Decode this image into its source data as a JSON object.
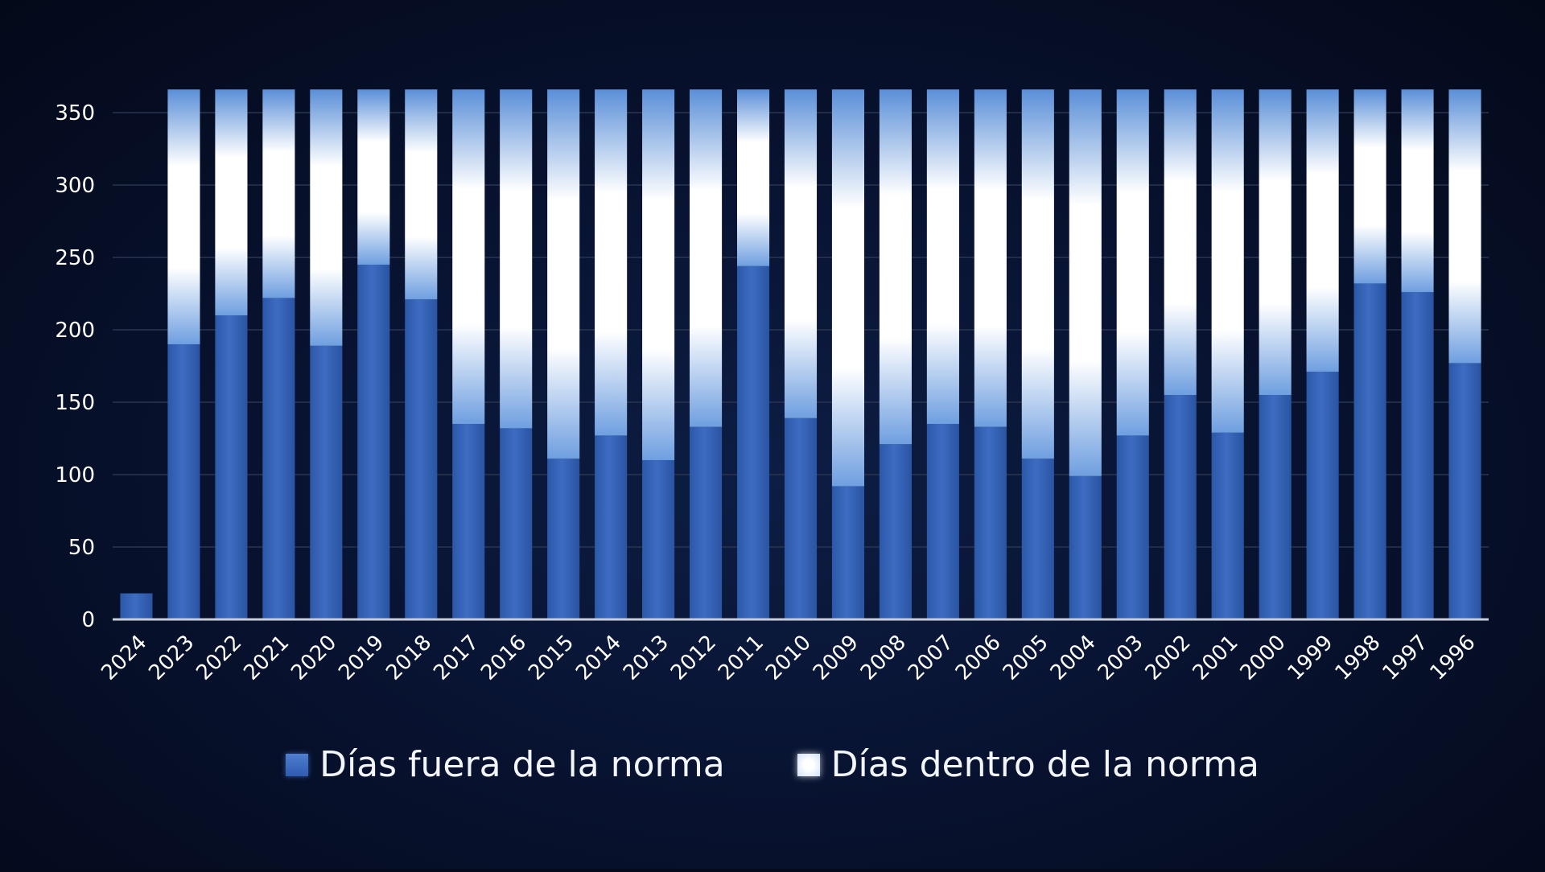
{
  "colors": {
    "fuera": "#3a66b8",
    "dentro": "#ffffff",
    "background": "#081331"
  },
  "chart_data": {
    "type": "bar",
    "stacked": true,
    "categories": [
      "2024",
      "2023",
      "2022",
      "2021",
      "2020",
      "2019",
      "2018",
      "2017",
      "2016",
      "2015",
      "2014",
      "2013",
      "2012",
      "2011",
      "2010",
      "2009",
      "2008",
      "2007",
      "2006",
      "2005",
      "2004",
      "2003",
      "2002",
      "2001",
      "2000",
      "1999",
      "1998",
      "1997",
      "1996"
    ],
    "series": [
      {
        "name": "Días fuera de la norma",
        "values": [
          18,
          190,
          210,
          222,
          189,
          245,
          221,
          135,
          132,
          111,
          127,
          110,
          133,
          244,
          139,
          92,
          121,
          135,
          133,
          111,
          99,
          127,
          155,
          129,
          155,
          171,
          232,
          226,
          177
        ]
      },
      {
        "name": "Días dentro de la norma",
        "values": [
          0,
          176,
          156,
          144,
          177,
          121,
          145,
          231,
          234,
          255,
          239,
          256,
          233,
          122,
          227,
          274,
          245,
          231,
          233,
          255,
          267,
          239,
          211,
          237,
          211,
          195,
          134,
          140,
          189
        ]
      }
    ],
    "yticks": [
      0,
      50,
      100,
      150,
      200,
      250,
      300,
      350
    ],
    "ylim": [
      0,
      375
    ],
    "grid": true,
    "legend": "bottom",
    "title": "",
    "xlabel": "",
    "ylabel": ""
  }
}
